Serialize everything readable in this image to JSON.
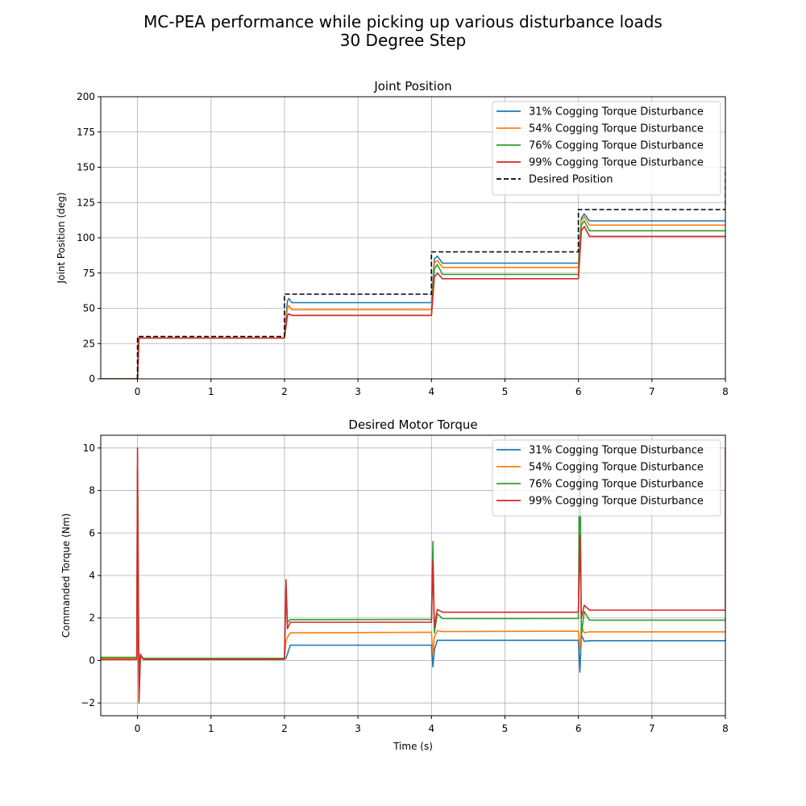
{
  "figure": {
    "title_line1": "MC-PEA performance while picking up various disturbance loads",
    "title_line2": "30 Degree Step"
  },
  "colors": {
    "series": [
      "#1f77b4",
      "#ff7f0e",
      "#2ca02c",
      "#d62728"
    ],
    "desired": "#000000",
    "grid": "#b0b0b0"
  },
  "chart_data": [
    {
      "type": "line",
      "title": "Joint Position",
      "xlabel": "",
      "ylabel": "Joint Position (deg)",
      "xlim": [
        -0.5,
        8
      ],
      "ylim": [
        0,
        200
      ],
      "xticks": [
        0,
        1,
        2,
        3,
        4,
        5,
        6,
        7,
        8
      ],
      "yticks": [
        0,
        25,
        50,
        75,
        100,
        125,
        150,
        175,
        200
      ],
      "grid": true,
      "legend_position": "top-right",
      "series": [
        {
          "name": "31% Cogging Torque Disturbance",
          "style": "solid",
          "x": [
            -0.5,
            0.0,
            0.02,
            2.0,
            2.04,
            2.06,
            2.1,
            4.0,
            4.04,
            4.08,
            4.15,
            6.0,
            6.04,
            6.08,
            6.15,
            8.0
          ],
          "y": [
            0,
            0,
            29,
            29,
            55,
            57,
            54,
            54,
            85,
            87,
            82,
            82,
            114,
            117,
            112,
            112
          ]
        },
        {
          "name": "54% Cogging Torque Disturbance",
          "style": "solid",
          "x": [
            -0.5,
            0.0,
            0.02,
            2.0,
            2.04,
            2.06,
            2.1,
            4.0,
            4.04,
            4.08,
            4.15,
            6.0,
            6.04,
            6.08,
            6.15,
            8.0
          ],
          "y": [
            0,
            0,
            29,
            29,
            50,
            52,
            49,
            49,
            82,
            84,
            79,
            79,
            112,
            115,
            109,
            109
          ]
        },
        {
          "name": "76% Cogging Torque Disturbance",
          "style": "solid",
          "x": [
            -0.5,
            0.0,
            0.02,
            2.0,
            2.04,
            2.06,
            2.1,
            4.0,
            4.04,
            4.08,
            4.15,
            6.0,
            6.04,
            6.08,
            6.15,
            8.0
          ],
          "y": [
            0,
            0,
            29,
            29,
            45,
            46,
            45,
            45,
            78,
            81,
            74,
            74,
            109,
            112,
            105,
            105
          ]
        },
        {
          "name": "99% Cogging Torque Disturbance",
          "style": "solid",
          "x": [
            -0.5,
            0.0,
            0.02,
            2.0,
            2.04,
            2.06,
            2.1,
            4.0,
            4.04,
            4.08,
            4.15,
            6.0,
            6.04,
            6.08,
            6.15,
            8.0
          ],
          "y": [
            0,
            0,
            29,
            29,
            45,
            46,
            45,
            45,
            72,
            75,
            71,
            71,
            105,
            108,
            101,
            101
          ]
        },
        {
          "name": "Desired Position",
          "style": "dashed",
          "x": [
            0.0,
            0.0,
            2.0,
            2.0,
            4.0,
            4.0,
            6.0,
            6.0,
            8.0,
            8.0
          ],
          "y": [
            0,
            30,
            30,
            60,
            60,
            90,
            90,
            120,
            120,
            150
          ]
        }
      ]
    },
    {
      "type": "line",
      "title": "Desired Motor Torque",
      "xlabel": "Time (s)",
      "ylabel": "Commanded Torque (Nm)",
      "xlim": [
        -0.5,
        8
      ],
      "ylim": [
        -2.6,
        10.6
      ],
      "xticks": [
        0,
        1,
        2,
        3,
        4,
        5,
        6,
        7,
        8
      ],
      "yticks": [
        -2,
        0,
        2,
        4,
        6,
        8,
        10
      ],
      "ytick_labels": [
        "−2",
        "0",
        "2",
        "4",
        "6",
        "8",
        "10"
      ],
      "grid": true,
      "legend_position": "top-right",
      "series": [
        {
          "name": "31% Cogging Torque Disturbance",
          "style": "solid",
          "x": [
            -0.5,
            -0.01,
            0.0,
            0.02,
            0.04,
            0.08,
            2.0,
            2.02,
            2.04,
            2.08,
            4.0,
            4.02,
            4.04,
            4.08,
            4.15,
            6.0,
            6.02,
            6.04,
            6.08,
            6.15,
            8.0,
            8.0
          ],
          "y": [
            0.1,
            0.1,
            3.0,
            -0.3,
            0.2,
            0.1,
            0.1,
            0.1,
            0.3,
            0.72,
            0.72,
            -0.3,
            0.5,
            0.95,
            0.95,
            0.95,
            -0.55,
            1.2,
            0.9,
            0.93,
            0.93,
            1.0
          ]
        },
        {
          "name": "54% Cogging Torque Disturbance",
          "style": "solid",
          "x": [
            -0.5,
            -0.01,
            0.0,
            0.02,
            0.04,
            0.08,
            2.0,
            2.02,
            2.04,
            2.08,
            4.0,
            4.02,
            4.04,
            4.08,
            4.15,
            6.0,
            6.02,
            6.04,
            6.08,
            6.15,
            8.0,
            8.0
          ],
          "y": [
            0.1,
            0.1,
            4.0,
            -0.5,
            0.2,
            0.05,
            0.05,
            0.9,
            1.1,
            1.3,
            1.33,
            0.3,
            1.1,
            1.4,
            1.36,
            1.38,
            0.5,
            1.6,
            1.3,
            1.35,
            1.35,
            1.4
          ]
        },
        {
          "name": "76% Cogging Torque Disturbance",
          "style": "solid",
          "x": [
            -0.5,
            -0.01,
            0.0,
            0.02,
            0.04,
            0.08,
            2.0,
            2.02,
            2.04,
            2.08,
            4.0,
            4.02,
            4.04,
            4.08,
            4.15,
            6.0,
            6.02,
            6.04,
            6.08,
            6.15,
            8.0,
            8.0
          ],
          "y": [
            0.15,
            0.15,
            9.0,
            -2.0,
            0.2,
            0.1,
            0.1,
            3.5,
            1.8,
            1.92,
            1.93,
            5.6,
            1.3,
            2.2,
            1.97,
            1.98,
            10.0,
            1.2,
            2.3,
            1.9,
            1.9,
            2.0
          ]
        },
        {
          "name": "99% Cogging Torque Disturbance",
          "style": "solid",
          "x": [
            -0.5,
            -0.01,
            0.0,
            0.02,
            0.04,
            0.08,
            2.0,
            2.02,
            2.04,
            2.08,
            4.0,
            4.02,
            4.04,
            4.08,
            4.15,
            6.0,
            6.02,
            6.04,
            6.08,
            6.15,
            8.0,
            8.0
          ],
          "y": [
            0.05,
            0.05,
            10.0,
            -1.9,
            0.3,
            0.05,
            0.05,
            3.8,
            1.5,
            1.8,
            1.8,
            4.7,
            1.6,
            2.4,
            2.27,
            2.27,
            5.9,
            2.0,
            2.6,
            2.37,
            2.37,
            10.0
          ]
        }
      ]
    }
  ]
}
